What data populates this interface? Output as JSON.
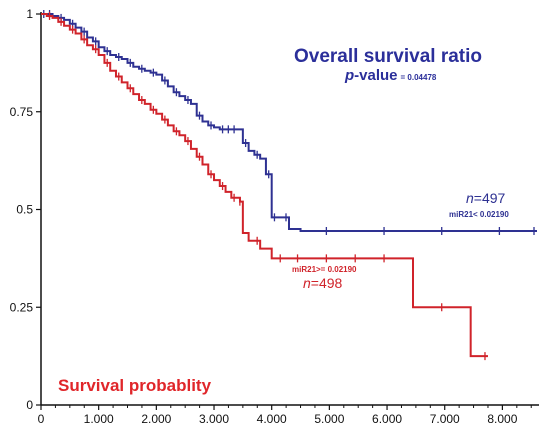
{
  "chart_data": {
    "type": "line",
    "style": "step",
    "title": "Overall survival ratio",
    "pvalue_label": "-value",
    "pvalue_prefix": "p",
    "pvalue": "= 0.04478",
    "ylabel": "Survival probablity",
    "xlabel": "",
    "xlim": [
      0,
      8.6
    ],
    "ylim": [
      0,
      1
    ],
    "x_ticks": [
      0,
      1,
      2,
      3,
      4,
      5,
      6,
      7,
      8
    ],
    "x_tick_labels": [
      "0",
      "1.000",
      "2.000",
      "3.000",
      "4.000",
      "5.000",
      "6.000",
      "7.000",
      "8.000"
    ],
    "y_ticks": [
      0,
      0.25,
      0.5,
      0.75,
      1
    ],
    "y_tick_labels": [
      "0",
      "0.25",
      "0.5",
      "0.75",
      "1"
    ],
    "grid": false,
    "series": [
      {
        "name": "miR21< 0.02190",
        "n_prefix": "n",
        "n_value": "=497",
        "color": "#2e3192",
        "x": [
          0,
          0.1,
          0.2,
          0.3,
          0.4,
          0.5,
          0.6,
          0.7,
          0.8,
          0.9,
          1.0,
          1.1,
          1.2,
          1.3,
          1.4,
          1.5,
          1.6,
          1.7,
          1.8,
          1.9,
          2.0,
          2.1,
          2.2,
          2.3,
          2.4,
          2.5,
          2.6,
          2.7,
          2.8,
          2.9,
          3.0,
          3.1,
          3.2,
          3.3,
          3.4,
          3.5,
          3.6,
          3.7,
          3.8,
          3.9,
          4.0,
          4.1,
          4.3,
          4.5,
          5.0,
          6.0,
          7.0,
          8.0,
          8.6
        ],
        "y": [
          1.0,
          1.0,
          0.995,
          0.99,
          0.985,
          0.975,
          0.965,
          0.955,
          0.94,
          0.93,
          0.915,
          0.905,
          0.895,
          0.89,
          0.885,
          0.875,
          0.865,
          0.86,
          0.855,
          0.85,
          0.845,
          0.83,
          0.815,
          0.8,
          0.79,
          0.78,
          0.77,
          0.74,
          0.725,
          0.715,
          0.71,
          0.705,
          0.705,
          0.705,
          0.705,
          0.67,
          0.65,
          0.64,
          0.63,
          0.59,
          0.48,
          0.48,
          0.45,
          0.445,
          0.445,
          0.445,
          0.445,
          0.445,
          0.445
        ]
      },
      {
        "name": "miR21>= 0.02190",
        "n_prefix": "n",
        "n_value": "=498",
        "color": "#d0232a",
        "x": [
          0,
          0.1,
          0.2,
          0.3,
          0.4,
          0.5,
          0.6,
          0.7,
          0.8,
          0.9,
          1.0,
          1.1,
          1.2,
          1.3,
          1.4,
          1.5,
          1.6,
          1.7,
          1.8,
          1.9,
          2.0,
          2.1,
          2.2,
          2.3,
          2.4,
          2.5,
          2.6,
          2.7,
          2.8,
          2.9,
          3.0,
          3.1,
          3.2,
          3.3,
          3.4,
          3.45,
          3.5,
          3.6,
          3.8,
          4.0,
          4.2,
          4.5,
          5.0,
          5.5,
          6.0,
          6.45,
          7.0,
          7.45,
          7.75
        ],
        "y": [
          1.0,
          0.995,
          0.99,
          0.98,
          0.97,
          0.96,
          0.95,
          0.935,
          0.92,
          0.91,
          0.895,
          0.875,
          0.855,
          0.84,
          0.825,
          0.81,
          0.795,
          0.78,
          0.77,
          0.755,
          0.745,
          0.73,
          0.715,
          0.7,
          0.69,
          0.675,
          0.655,
          0.635,
          0.615,
          0.59,
          0.575,
          0.56,
          0.545,
          0.53,
          0.53,
          0.52,
          0.44,
          0.42,
          0.4,
          0.375,
          0.375,
          0.375,
          0.375,
          0.375,
          0.375,
          0.25,
          0.25,
          0.125,
          0.125
        ]
      }
    ]
  }
}
